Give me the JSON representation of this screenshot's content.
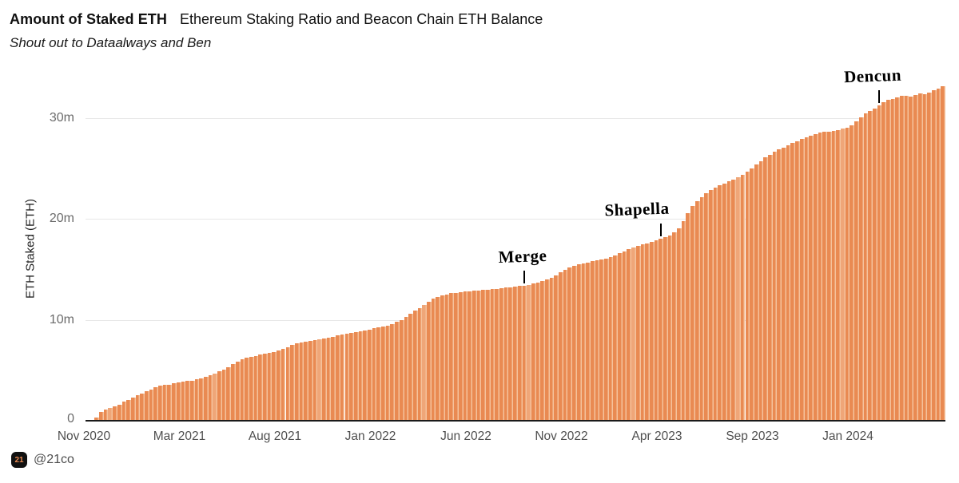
{
  "header": {
    "title_bold": "Amount of Staked ETH",
    "title_regular": "Ethereum Staking Ratio and Beacon Chain ETH Balance",
    "subtitle": "Shout out to Dataalways and Ben"
  },
  "footer": {
    "logo_text": "21",
    "handle": "@21co"
  },
  "chart_data": {
    "type": "bar",
    "title": "Amount of Staked ETH — Ethereum Staking Ratio and Beacon Chain ETH Balance",
    "subtitle": "Shout out to Dataalways and Ben",
    "xlabel": "",
    "ylabel": "ETH Staked (ETH)",
    "unit": "millions of ETH",
    "frequency": "weekly",
    "x_start": "Nov 2020",
    "x_end": "Jun 2024",
    "ylim": [
      0,
      34
    ],
    "grid": "horizontal",
    "y_ticks": [
      {
        "value": 0,
        "label": "0"
      },
      {
        "value": 10,
        "label": "10m"
      },
      {
        "value": 20,
        "label": "20m"
      },
      {
        "value": 30,
        "label": "30m"
      }
    ],
    "x_ticks": [
      "Nov 2020",
      "Mar 2021",
      "Aug 2021",
      "Jan 2022",
      "Jun 2022",
      "Nov 2022",
      "Apr 2023",
      "Sep 2023",
      "Jan 2024"
    ],
    "values_m": [
      0.05,
      0.1,
      0.3,
      0.9,
      1.1,
      1.25,
      1.4,
      1.6,
      1.9,
      2.1,
      2.3,
      2.5,
      2.7,
      2.9,
      3.1,
      3.3,
      3.45,
      3.55,
      3.6,
      3.7,
      3.8,
      3.9,
      3.95,
      4.0,
      4.1,
      4.2,
      4.35,
      4.5,
      4.7,
      4.9,
      5.1,
      5.3,
      5.6,
      5.9,
      6.1,
      6.25,
      6.35,
      6.45,
      6.55,
      6.65,
      6.75,
      6.85,
      7.0,
      7.15,
      7.3,
      7.5,
      7.65,
      7.75,
      7.85,
      7.95,
      8.0,
      8.1,
      8.15,
      8.25,
      8.35,
      8.45,
      8.55,
      8.65,
      8.7,
      8.8,
      8.85,
      8.95,
      9.05,
      9.15,
      9.25,
      9.35,
      9.45,
      9.6,
      9.8,
      10.0,
      10.3,
      10.6,
      10.9,
      11.2,
      11.5,
      11.8,
      12.1,
      12.3,
      12.45,
      12.55,
      12.65,
      12.7,
      12.75,
      12.8,
      12.85,
      12.9,
      12.9,
      12.95,
      13.0,
      13.05,
      13.1,
      13.15,
      13.2,
      13.25,
      13.3,
      13.35,
      13.4,
      13.5,
      13.6,
      13.7,
      13.85,
      14.0,
      14.2,
      14.45,
      14.7,
      14.95,
      15.2,
      15.4,
      15.5,
      15.6,
      15.7,
      15.8,
      15.9,
      16.0,
      16.1,
      16.25,
      16.4,
      16.6,
      16.8,
      17.0,
      17.2,
      17.35,
      17.5,
      17.6,
      17.75,
      17.9,
      18.05,
      18.2,
      18.4,
      18.7,
      19.1,
      19.8,
      20.6,
      21.3,
      21.8,
      22.2,
      22.55,
      22.85,
      23.1,
      23.35,
      23.55,
      23.75,
      23.95,
      24.15,
      24.4,
      24.7,
      25.0,
      25.4,
      25.75,
      26.1,
      26.4,
      26.65,
      26.9,
      27.1,
      27.35,
      27.55,
      27.75,
      27.95,
      28.15,
      28.3,
      28.45,
      28.55,
      28.65,
      28.7,
      28.75,
      28.85,
      28.95,
      29.1,
      29.3,
      29.7,
      30.1,
      30.45,
      30.75,
      31.0,
      31.3,
      31.6,
      31.8,
      31.95,
      32.1,
      32.2,
      32.25,
      32.15,
      32.3,
      32.45,
      32.35,
      32.55,
      32.75,
      32.95,
      33.2
    ],
    "annotations": [
      {
        "label": "Merge",
        "index": 96,
        "event_value_m": 13.4,
        "dx": -2
      },
      {
        "label": "Shapella",
        "index": 126,
        "event_value_m": 18.05,
        "dx": -30
      },
      {
        "label": "Dencun",
        "index": 174,
        "event_value_m": 31.3,
        "dx": -8
      }
    ],
    "colors": {
      "bar": "#e98a52",
      "bar_gap": "#f5c29c",
      "bar_light": "#efa678",
      "grid": "#e7e7e7",
      "axis": "#1a1a1a",
      "y_tick_label": "#6b6b6b",
      "x_tick_label": "#4f4f4f",
      "annotation": "#000000"
    },
    "legend": null
  }
}
